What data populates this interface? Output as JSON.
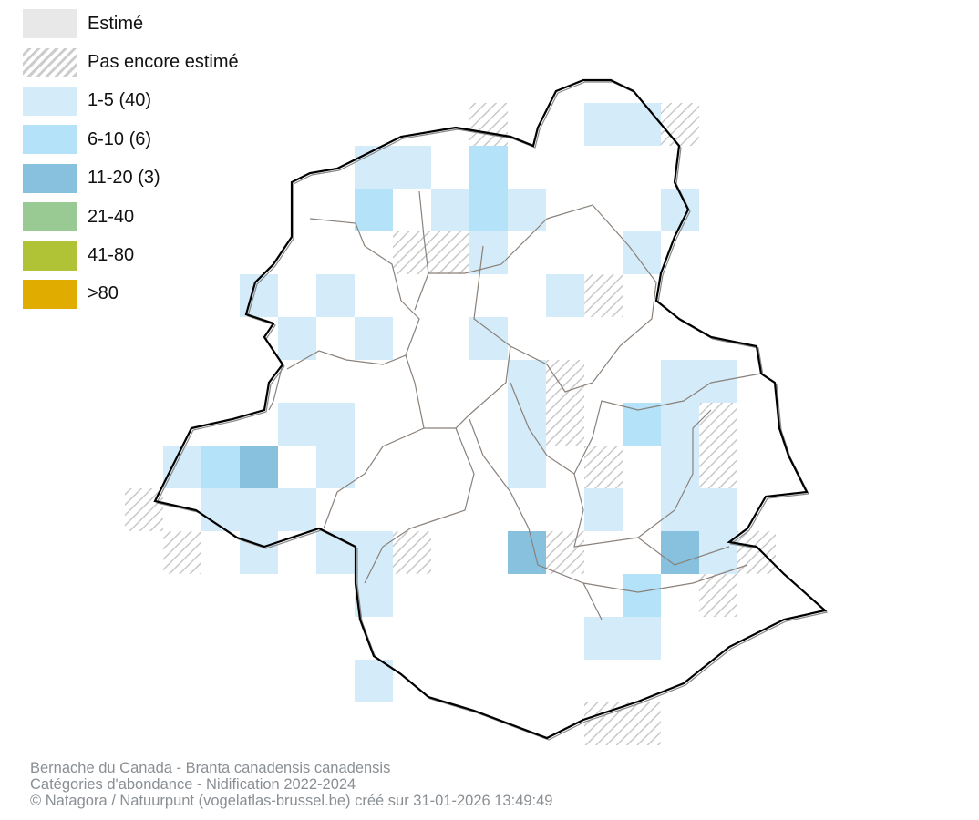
{
  "legend": [
    {
      "label": "Estimé",
      "color": "#e8e8e8",
      "pattern": "solid"
    },
    {
      "label": "Pas encore estimé",
      "color": "#cccccc",
      "pattern": "hatch"
    },
    {
      "label": "1-5 (40)",
      "color": "#d4ebf9",
      "pattern": "solid"
    },
    {
      "label": "6-10 (6)",
      "color": "#b3e2f9",
      "pattern": "solid"
    },
    {
      "label": "11-20 (3)",
      "color": "#88c1de",
      "pattern": "solid"
    },
    {
      "label": "21-40",
      "color": "#99ca94",
      "pattern": "solid"
    },
    {
      "label": "41-80",
      "color": "#b0c235",
      "pattern": "solid"
    },
    {
      "label": ">80",
      "color": "#e0ac00",
      "pattern": "solid"
    }
  ],
  "grid_cells": {
    "hatch": [
      [
        0,
        9
      ],
      [
        0,
        14
      ],
      [
        3,
        7
      ],
      [
        3,
        8
      ],
      [
        4,
        12
      ],
      [
        6,
        11
      ],
      [
        7,
        11
      ],
      [
        7,
        15
      ],
      [
        8,
        12
      ],
      [
        8,
        15
      ],
      [
        9,
        0
      ],
      [
        10,
        1
      ],
      [
        10,
        7
      ],
      [
        10,
        11
      ],
      [
        10,
        16
      ],
      [
        11,
        15
      ],
      [
        14,
        12
      ],
      [
        14,
        13
      ]
    ],
    "c1_5": [
      [
        0,
        12
      ],
      [
        0,
        13
      ],
      [
        1,
        6
      ],
      [
        1,
        7
      ],
      [
        2,
        8
      ],
      [
        2,
        10
      ],
      [
        2,
        14
      ],
      [
        3,
        9
      ],
      [
        3,
        13
      ],
      [
        4,
        3
      ],
      [
        4,
        5
      ],
      [
        4,
        11
      ],
      [
        5,
        4
      ],
      [
        5,
        6
      ],
      [
        5,
        9
      ],
      [
        6,
        10
      ],
      [
        6,
        14
      ],
      [
        6,
        15
      ],
      [
        7,
        4
      ],
      [
        7,
        5
      ],
      [
        7,
        10
      ],
      [
        7,
        14
      ],
      [
        8,
        1
      ],
      [
        8,
        5
      ],
      [
        8,
        10
      ],
      [
        8,
        14
      ],
      [
        9,
        2
      ],
      [
        9,
        3
      ],
      [
        9,
        4
      ],
      [
        9,
        12
      ],
      [
        9,
        14
      ],
      [
        9,
        15
      ],
      [
        10,
        3
      ],
      [
        10,
        5
      ],
      [
        10,
        6
      ],
      [
        10,
        15
      ],
      [
        11,
        6
      ],
      [
        12,
        12
      ],
      [
        12,
        13
      ],
      [
        13,
        6
      ]
    ],
    "c6_10": [
      [
        1,
        9
      ],
      [
        2,
        9
      ],
      [
        2,
        6
      ],
      [
        7,
        13
      ],
      [
        8,
        2
      ],
      [
        11,
        13
      ]
    ],
    "c11_20": [
      [
        8,
        3
      ],
      [
        10,
        10
      ],
      [
        10,
        14
      ]
    ]
  },
  "footer": {
    "line1": "Bernache du Canada - Branta canadensis canadensis",
    "line2": "Catégories d'abondance - Nidification 2022-2024",
    "line3": "© Natagora / Natuurpunt (vogelatlas-brussel.be) créé sur 31-01-2026 13:49:49"
  }
}
